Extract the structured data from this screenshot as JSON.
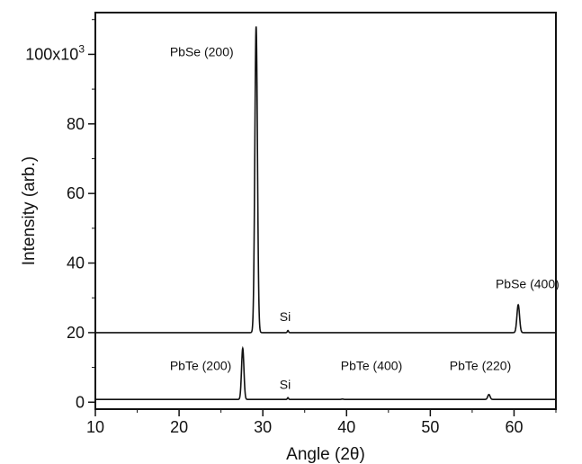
{
  "chart_data": {
    "type": "line",
    "xlabel": "Angle (2θ)",
    "ylabel": "Intensity (arb.)",
    "xlim": [
      10,
      65
    ],
    "ylim": [
      -2,
      112
    ],
    "x_ticks": [
      10,
      20,
      30,
      40,
      50,
      60
    ],
    "y_ticks": [
      {
        "value": 0,
        "label": "0"
      },
      {
        "value": 20,
        "label": "20"
      },
      {
        "value": 40,
        "label": "40"
      },
      {
        "value": 60,
        "label": "60"
      },
      {
        "value": 80,
        "label": "80"
      },
      {
        "value": 100,
        "label": "100x10",
        "exponent": "3"
      }
    ],
    "grid": false,
    "series": [
      {
        "baseline": 20,
        "peaks": [
          {
            "x": 29.2,
            "y": 108,
            "width": 0.22
          },
          {
            "x": 33.0,
            "y": 20.6,
            "width": 0.1
          },
          {
            "x": 60.5,
            "y": 28,
            "width": 0.22
          }
        ]
      },
      {
        "baseline": 0.8,
        "peaks": [
          {
            "x": 27.6,
            "y": 15.5,
            "width": 0.2
          },
          {
            "x": 33.0,
            "y": 1.3,
            "width": 0.1
          },
          {
            "x": 39.5,
            "y": 0.9,
            "width": 0.15
          },
          {
            "x": 57.0,
            "y": 2.2,
            "width": 0.2
          }
        ]
      }
    ],
    "annotations": [
      {
        "text": "PbSe (200)",
        "x": 18.9,
        "y": 99.5
      },
      {
        "text": "Si",
        "x": 32.0,
        "y": 23.3
      },
      {
        "text": "PbSe (400)",
        "x": 57.8,
        "y": 32.8
      },
      {
        "text": "PbTe (200)",
        "x": 18.9,
        "y": 9.3
      },
      {
        "text": "Si",
        "x": 32.0,
        "y": 3.8
      },
      {
        "text": "PbTe (400)",
        "x": 39.3,
        "y": 9.3
      },
      {
        "text": "PbTe (220)",
        "x": 52.3,
        "y": 9.3
      }
    ]
  }
}
